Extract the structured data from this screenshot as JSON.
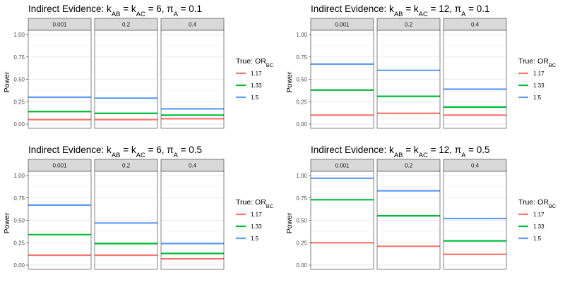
{
  "chart_data": [
    {
      "type": "line",
      "title_parts": [
        "Indirect Evidence: k",
        "AB",
        " = k",
        "AC",
        " = 6, π",
        "A",
        " = 0.1"
      ],
      "ylabel": "Power",
      "ylim": [
        0,
        1
      ],
      "yticks": [
        "0.00",
        "0.25",
        "0.50",
        "0.75",
        "1.00"
      ],
      "facets": [
        "0.001",
        "0.2",
        "0.4"
      ],
      "legend": {
        "title_main": "True: OR",
        "title_sub": "BC",
        "position": "right"
      },
      "series": [
        {
          "name": "1.17",
          "color": "#f8766d",
          "values": [
            0.05,
            0.05,
            0.06
          ]
        },
        {
          "name": "1.33",
          "color": "#00ba38",
          "values": [
            0.14,
            0.12,
            0.1
          ]
        },
        {
          "name": "1.5",
          "color": "#619cff",
          "values": [
            0.3,
            0.29,
            0.17
          ]
        }
      ]
    },
    {
      "type": "line",
      "title_parts": [
        "Indirect Evidence: k",
        "AB",
        " = k",
        "AC",
        " = 12, π",
        "A",
        " = 0.1"
      ],
      "ylabel": "Power",
      "ylim": [
        0,
        1
      ],
      "yticks": [
        "0.00",
        "0.25",
        "0.50",
        "0.75",
        "1.00"
      ],
      "facets": [
        "0.001",
        "0.2",
        "0.4"
      ],
      "legend": {
        "title_main": "True: OR",
        "title_sub": "BC",
        "position": "right"
      },
      "series": [
        {
          "name": "1.17",
          "color": "#f8766d",
          "values": [
            0.1,
            0.12,
            0.1
          ]
        },
        {
          "name": "1.33",
          "color": "#00ba38",
          "values": [
            0.38,
            0.31,
            0.19
          ]
        },
        {
          "name": "1.5",
          "color": "#619cff",
          "values": [
            0.67,
            0.6,
            0.39
          ]
        }
      ]
    },
    {
      "type": "line",
      "title_parts": [
        "Indirect Evidence: k",
        "AB",
        " = k",
        "AC",
        " = 6, π",
        "A",
        " = 0.5"
      ],
      "ylabel": "Power",
      "ylim": [
        0,
        1
      ],
      "yticks": [
        "0.00",
        "0.25",
        "0.50",
        "0.75",
        "1.00"
      ],
      "facets": [
        "0.001",
        "0.2",
        "0.4"
      ],
      "legend": {
        "title_main": "True: OR",
        "title_sub": "BC",
        "position": "right"
      },
      "series": [
        {
          "name": "1.17",
          "color": "#f8766d",
          "values": [
            0.11,
            0.11,
            0.07
          ]
        },
        {
          "name": "1.33",
          "color": "#00ba38",
          "values": [
            0.34,
            0.24,
            0.13
          ]
        },
        {
          "name": "1.5",
          "color": "#619cff",
          "values": [
            0.67,
            0.47,
            0.24
          ]
        }
      ]
    },
    {
      "type": "line",
      "title_parts": [
        "Indirect Evidence: k",
        "AB",
        " = k",
        "AC",
        " = 12, π",
        "A",
        " = 0.5"
      ],
      "ylabel": "Power",
      "ylim": [
        0,
        1
      ],
      "yticks": [
        "0.00",
        "0.25",
        "0.50",
        "0.75",
        "1.00"
      ],
      "facets": [
        "0.001",
        "0.2",
        "0.4"
      ],
      "legend": {
        "title_main": "True: OR",
        "title_sub": "BC",
        "position": "right"
      },
      "series": [
        {
          "name": "1.17",
          "color": "#f8766d",
          "values": [
            0.25,
            0.21,
            0.12
          ]
        },
        {
          "name": "1.33",
          "color": "#00ba38",
          "values": [
            0.73,
            0.55,
            0.27
          ]
        },
        {
          "name": "1.5",
          "color": "#619cff",
          "values": [
            0.97,
            0.83,
            0.52
          ]
        }
      ]
    }
  ]
}
